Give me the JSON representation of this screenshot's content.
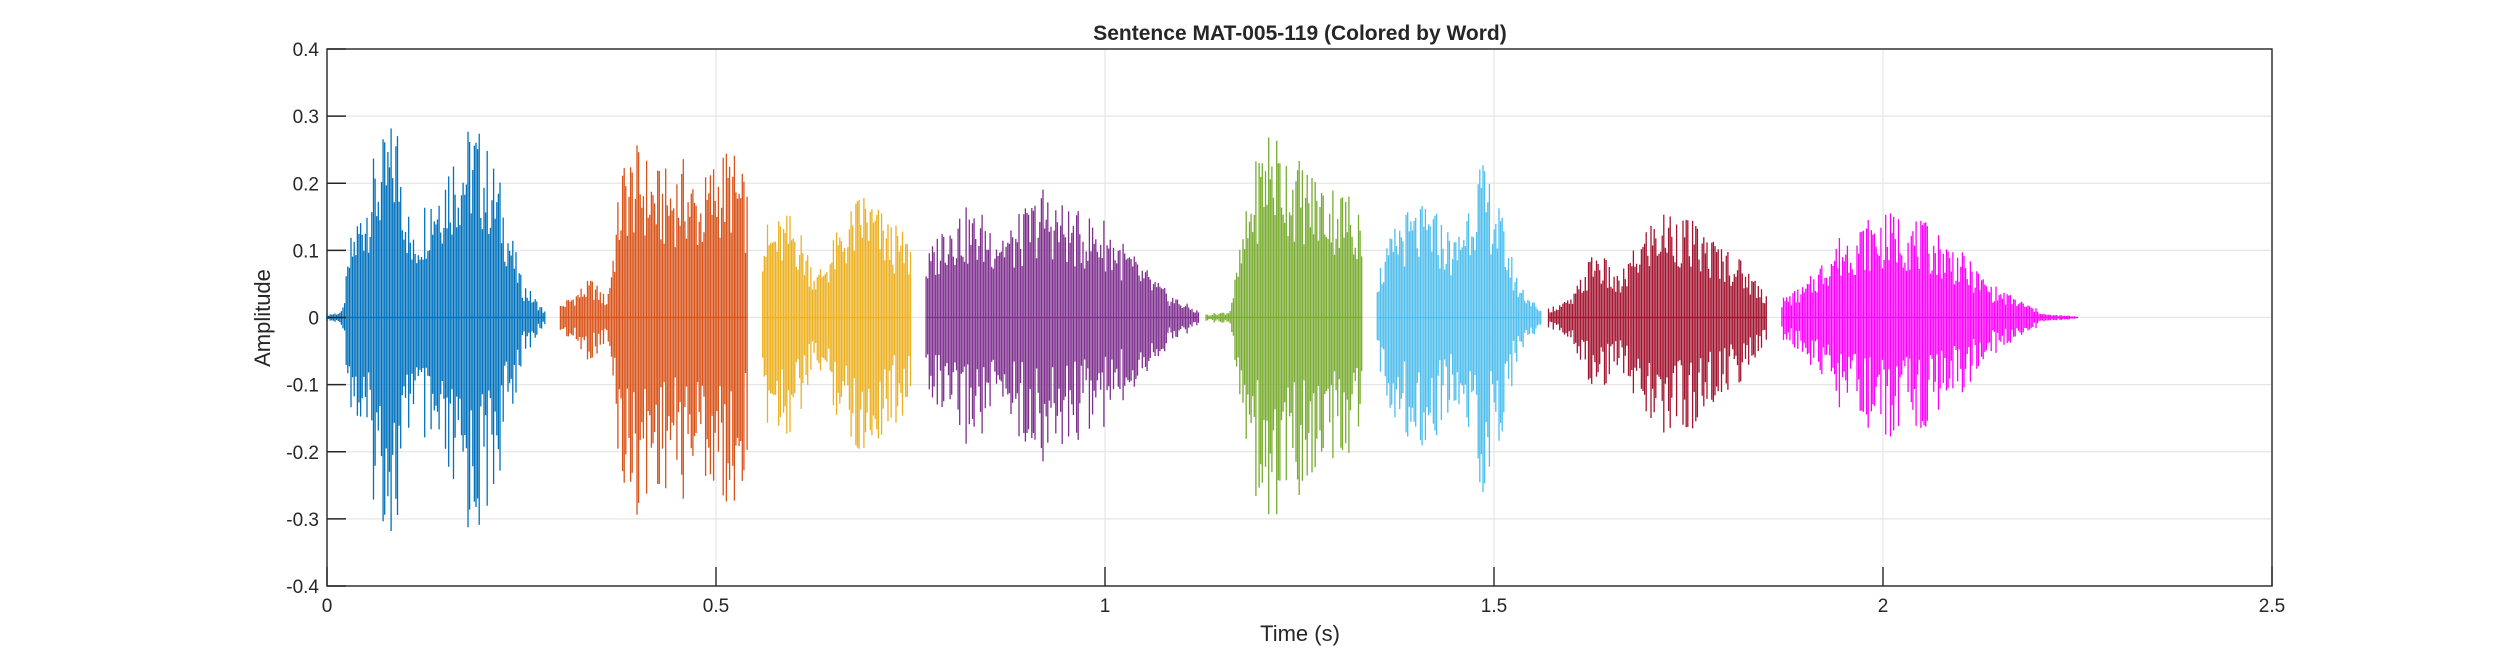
{
  "chart_data": {
    "type": "line",
    "title": "Sentence MAT-005-119 (Colored by Word)",
    "xlabel": "Time (s)",
    "ylabel": "Amplitude",
    "xlim": [
      0,
      2.5
    ],
    "ylim": [
      -0.4,
      0.4
    ],
    "xticks": [
      0,
      0.5,
      1,
      1.5,
      2,
      2.5
    ],
    "xtick_labels": [
      "0",
      "0.5",
      "1",
      "1.5",
      "2",
      "2.5"
    ],
    "yticks": [
      -0.4,
      -0.3,
      -0.2,
      -0.1,
      0,
      0.1,
      0.2,
      0.3,
      0.4
    ],
    "ytick_labels": [
      "-0.4",
      "-0.3",
      "-0.2",
      "-0.1",
      "0",
      "0.1",
      "0.2",
      "0.3",
      "0.4"
    ],
    "grid": true,
    "series": [
      {
        "color": "#0072BD",
        "start": 0.0,
        "end": 0.28,
        "envelope": [
          [
            0.0,
            0.005
          ],
          [
            0.02,
            0.01
          ],
          [
            0.03,
            0.12
          ],
          [
            0.06,
            0.24
          ],
          [
            0.09,
            0.31
          ],
          [
            0.11,
            0.12
          ],
          [
            0.13,
            0.2
          ],
          [
            0.16,
            0.26
          ],
          [
            0.19,
            0.3
          ],
          [
            0.22,
            0.22
          ],
          [
            0.25,
            0.06
          ],
          [
            0.28,
            0.01
          ]
        ]
      },
      {
        "color": "#D95319",
        "start": 0.3,
        "end": 0.54,
        "envelope": [
          [
            0.3,
            0.02
          ],
          [
            0.34,
            0.06
          ],
          [
            0.36,
            0.03
          ],
          [
            0.38,
            0.24
          ],
          [
            0.4,
            0.26
          ],
          [
            0.43,
            0.22
          ],
          [
            0.46,
            0.24
          ],
          [
            0.48,
            0.2
          ],
          [
            0.5,
            0.25
          ],
          [
            0.52,
            0.26
          ],
          [
            0.54,
            0.2
          ]
        ]
      },
      {
        "color": "#EDB120",
        "start": 0.56,
        "end": 0.75,
        "envelope": [
          [
            0.56,
            0.14
          ],
          [
            0.6,
            0.16
          ],
          [
            0.63,
            0.07
          ],
          [
            0.66,
            0.14
          ],
          [
            0.69,
            0.2
          ],
          [
            0.72,
            0.15
          ],
          [
            0.75,
            0.12
          ]
        ]
      },
      {
        "color": "#7E2F8E",
        "start": 0.77,
        "end": 1.12,
        "envelope": [
          [
            0.77,
            0.09
          ],
          [
            0.8,
            0.17
          ],
          [
            0.84,
            0.16
          ],
          [
            0.88,
            0.14
          ],
          [
            0.92,
            0.2
          ],
          [
            0.96,
            0.16
          ],
          [
            1.0,
            0.15
          ],
          [
            1.04,
            0.09
          ],
          [
            1.08,
            0.04
          ],
          [
            1.12,
            0.01
          ]
        ]
      },
      {
        "color": "#77AC30",
        "start": 1.13,
        "end": 1.33,
        "envelope": [
          [
            1.13,
            0.005
          ],
          [
            1.16,
            0.01
          ],
          [
            1.19,
            0.22
          ],
          [
            1.21,
            0.3
          ],
          [
            1.24,
            0.25
          ],
          [
            1.27,
            0.22
          ],
          [
            1.3,
            0.2
          ],
          [
            1.33,
            0.18
          ]
        ]
      },
      {
        "color": "#4DBEEE",
        "start": 1.35,
        "end": 1.56,
        "envelope": [
          [
            1.35,
            0.07
          ],
          [
            1.38,
            0.16
          ],
          [
            1.42,
            0.17
          ],
          [
            1.45,
            0.12
          ],
          [
            1.48,
            0.24
          ],
          [
            1.5,
            0.2
          ],
          [
            1.53,
            0.06
          ],
          [
            1.56,
            0.01
          ]
        ]
      },
      {
        "color": "#A2142F",
        "start": 1.57,
        "end": 1.85,
        "envelope": [
          [
            1.57,
            0.015
          ],
          [
            1.6,
            0.03
          ],
          [
            1.63,
            0.11
          ],
          [
            1.66,
            0.06
          ],
          [
            1.7,
            0.15
          ],
          [
            1.73,
            0.17
          ],
          [
            1.77,
            0.13
          ],
          [
            1.81,
            0.1
          ],
          [
            1.85,
            0.04
          ]
        ]
      },
      {
        "color": "#FF00FF",
        "start": 1.87,
        "end": 2.25,
        "envelope": [
          [
            1.87,
            0.03
          ],
          [
            1.9,
            0.05
          ],
          [
            1.94,
            0.12
          ],
          [
            1.98,
            0.15
          ],
          [
            2.02,
            0.16
          ],
          [
            2.06,
            0.14
          ],
          [
            2.1,
            0.1
          ],
          [
            2.14,
            0.05
          ],
          [
            2.18,
            0.025
          ],
          [
            2.21,
            0.005
          ],
          [
            2.25,
            0.002
          ]
        ]
      }
    ]
  }
}
